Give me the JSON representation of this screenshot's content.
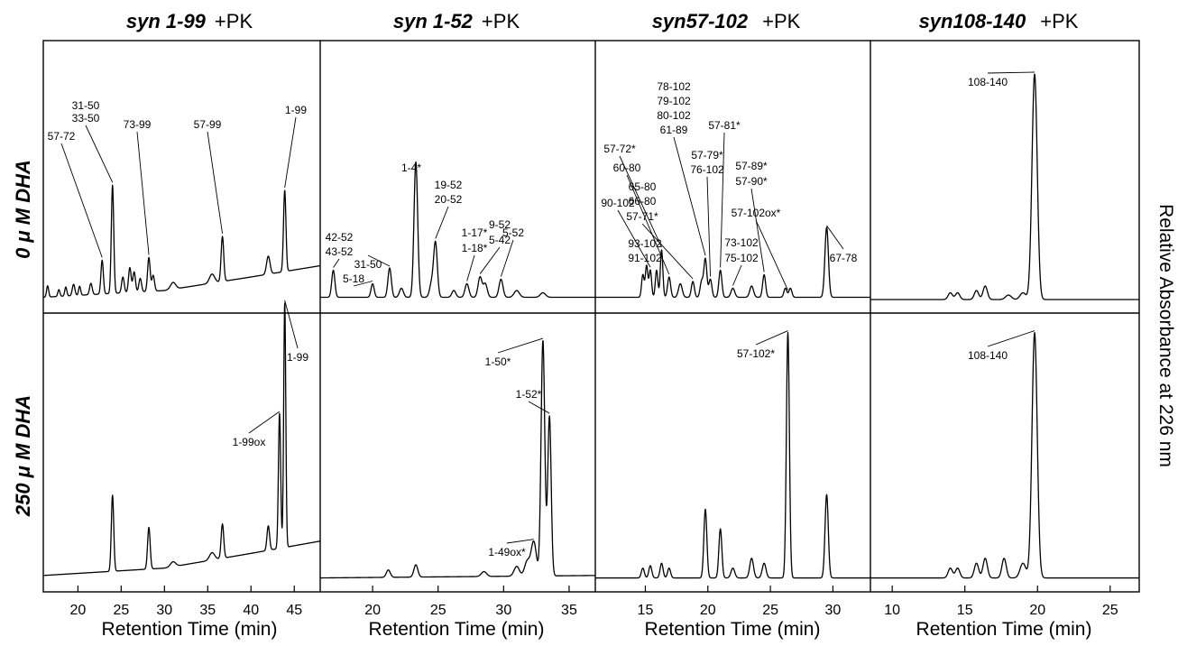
{
  "y_axis_label": "Relative Absorbance at 226 nm",
  "row_labels": [
    {
      "value": "0",
      "rest": " M DHA"
    },
    {
      "value": "250",
      "rest": " M DHA"
    }
  ],
  "mu": "μ",
  "chart_data": [
    {
      "type": "line",
      "title": "syn 1-99",
      "title_suffix": "+PK",
      "xlabel": "Retention Time (min)",
      "xlim": [
        16,
        48
      ],
      "xticks": [
        20,
        25,
        30,
        35,
        40,
        45
      ],
      "ylim": [
        0,
        100
      ],
      "grid": false,
      "series": [
        {
          "condition": "0 μM DHA",
          "baseline": [
            [
              16,
              3
            ],
            [
              30,
              6
            ],
            [
              40,
              12
            ],
            [
              48,
              17
            ]
          ],
          "peaks": [
            [
              16.5,
              5,
              0.12
            ],
            [
              17.8,
              3,
              0.12
            ],
            [
              18.6,
              4,
              0.12
            ],
            [
              19.5,
              5,
              0.15
            ],
            [
              20.2,
              4,
              0.12
            ],
            [
              21.5,
              5,
              0.15
            ],
            [
              22.8,
              15,
              0.14
            ],
            [
              24.0,
              48,
              0.14
            ],
            [
              25.2,
              7,
              0.15
            ],
            [
              26.0,
              11,
              0.15
            ],
            [
              26.5,
              9,
              0.15
            ],
            [
              27.2,
              6,
              0.15
            ],
            [
              28.2,
              15,
              0.15
            ],
            [
              28.7,
              7,
              0.15
            ],
            [
              31.0,
              3,
              0.3
            ],
            [
              35.5,
              4,
              0.3
            ],
            [
              36.7,
              20,
              0.15
            ],
            [
              42.0,
              8,
              0.2
            ],
            [
              43.9,
              36,
              0.14
            ]
          ]
        },
        {
          "condition": "250 μM DHA",
          "baseline": [
            [
              16,
              3
            ],
            [
              30,
              6
            ],
            [
              40,
              12
            ],
            [
              48,
              17
            ]
          ],
          "peaks": [
            [
              24.0,
              31,
              0.14
            ],
            [
              28.2,
              17,
              0.15
            ],
            [
              31.0,
              2,
              0.3
            ],
            [
              35.5,
              3,
              0.3
            ],
            [
              36.7,
              14,
              0.15
            ],
            [
              42.0,
              10,
              0.15
            ],
            [
              43.3,
              55,
              0.13
            ],
            [
              43.9,
              100,
              0.12
            ]
          ]
        }
      ],
      "annotations": [
        {
          "row": 0,
          "text": "31-50",
          "x": 24.0
        },
        {
          "row": 0,
          "text": "33-50",
          "x": 24.0
        },
        {
          "row": 0,
          "text": "57-72",
          "x": 22.8
        },
        {
          "row": 0,
          "text": "73-99",
          "x": 28.2
        },
        {
          "row": 0,
          "text": "57-99",
          "x": 36.7
        },
        {
          "row": 0,
          "text": "1-99",
          "x": 43.9
        },
        {
          "row": 1,
          "text": "1-99",
          "x": 43.9
        },
        {
          "row": 1,
          "text": "1-99ox",
          "x": 43.3
        }
      ]
    },
    {
      "type": "line",
      "title": "syn 1-52",
      "title_suffix": "+PK",
      "xlabel": "Retention Time (min)",
      "xlim": [
        16,
        37
      ],
      "xticks": [
        20,
        25,
        30,
        35
      ],
      "ylim": [
        0,
        100
      ],
      "grid": false,
      "series": [
        {
          "condition": "0 μM DHA",
          "baseline": [
            [
              16,
              3
            ],
            [
              37,
              3
            ]
          ],
          "peaks": [
            [
              17.0,
              12,
              0.12
            ],
            [
              20.0,
              6,
              0.12
            ],
            [
              21.3,
              13,
              0.13
            ],
            [
              22.2,
              4,
              0.15
            ],
            [
              23.3,
              60,
              0.14
            ],
            [
              24.5,
              6,
              0.15
            ],
            [
              24.8,
              24,
              0.14
            ],
            [
              26.2,
              3,
              0.15
            ],
            [
              27.2,
              6,
              0.15
            ],
            [
              28.2,
              9,
              0.15
            ],
            [
              28.6,
              6,
              0.15
            ],
            [
              29.8,
              8,
              0.15
            ],
            [
              31.0,
              3,
              0.2
            ],
            [
              33.0,
              2,
              0.2
            ]
          ]
        },
        {
          "condition": "250 μM DHA",
          "baseline": [
            [
              16,
              2
            ],
            [
              37,
              3
            ]
          ],
          "peaks": [
            [
              21.2,
              3,
              0.15
            ],
            [
              23.3,
              5,
              0.15
            ],
            [
              28.5,
              2,
              0.2
            ],
            [
              31.0,
              4,
              0.2
            ],
            [
              31.8,
              6,
              0.2
            ],
            [
              32.3,
              14,
              0.2
            ],
            [
              33.0,
              96,
              0.14
            ],
            [
              33.5,
              65,
              0.13
            ]
          ]
        }
      ],
      "annotations": [
        {
          "row": 0,
          "text": "42-52",
          "x": 17.0
        },
        {
          "row": 0,
          "text": "43-52",
          "x": 17.0
        },
        {
          "row": 0,
          "text": "5-18",
          "x": 20.0
        },
        {
          "row": 0,
          "text": "31-50",
          "x": 21.3
        },
        {
          "row": 0,
          "text": "1-4*",
          "x": 23.3
        },
        {
          "row": 0,
          "text": "19-52",
          "x": 24.8
        },
        {
          "row": 0,
          "text": "20-52",
          "x": 24.8
        },
        {
          "row": 0,
          "text": "1-17*",
          "x": 27.2
        },
        {
          "row": 0,
          "text": "1-18*",
          "x": 27.2
        },
        {
          "row": 0,
          "text": "9-52",
          "x": 28.2
        },
        {
          "row": 0,
          "text": "5-42",
          "x": 28.2
        },
        {
          "row": 0,
          "text": "5-52",
          "x": 29.8
        },
        {
          "row": 1,
          "text": "1-50*",
          "x": 33.0
        },
        {
          "row": 1,
          "text": "1-52*",
          "x": 33.5
        },
        {
          "row": 1,
          "text": "1-49ox*",
          "x": 32.3
        }
      ]
    },
    {
      "type": "line",
      "title": "syn57-102",
      "title_suffix": "+PK",
      "xlabel": "Retention Time (min)",
      "xlim": [
        11,
        33
      ],
      "xticks": [
        15,
        20,
        25,
        30
      ],
      "ylim": [
        0,
        100
      ],
      "grid": false,
      "series": [
        {
          "condition": "0 μM DHA",
          "baseline": [
            [
              11,
              3
            ],
            [
              33,
              3
            ]
          ],
          "peaks": [
            [
              14.8,
              10,
              0.1
            ],
            [
              15.1,
              14,
              0.1
            ],
            [
              15.4,
              12,
              0.1
            ],
            [
              15.9,
              12,
              0.1
            ],
            [
              16.3,
              21,
              0.1
            ],
            [
              16.9,
              9,
              0.12
            ],
            [
              17.8,
              6,
              0.15
            ],
            [
              18.8,
              7,
              0.12
            ],
            [
              19.5,
              7,
              0.12
            ],
            [
              19.8,
              17,
              0.12
            ],
            [
              20.2,
              8,
              0.12
            ],
            [
              21.0,
              12,
              0.12
            ],
            [
              22.0,
              4,
              0.15
            ],
            [
              23.5,
              5,
              0.15
            ],
            [
              24.5,
              10,
              0.12
            ],
            [
              26.2,
              4,
              0.12
            ],
            [
              26.6,
              4,
              0.12
            ],
            [
              29.5,
              31,
              0.14
            ]
          ]
        },
        {
          "condition": "250 μM DHA",
          "baseline": [
            [
              11,
              2
            ],
            [
              33,
              2
            ]
          ],
          "peaks": [
            [
              14.8,
              4,
              0.12
            ],
            [
              15.4,
              5,
              0.12
            ],
            [
              16.3,
              6,
              0.12
            ],
            [
              16.9,
              4,
              0.12
            ],
            [
              19.8,
              28,
              0.12
            ],
            [
              21.0,
              20,
              0.12
            ],
            [
              22.0,
              4,
              0.15
            ],
            [
              23.5,
              8,
              0.15
            ],
            [
              24.5,
              6,
              0.15
            ],
            [
              26.4,
              100,
              0.12
            ],
            [
              29.5,
              34,
              0.13
            ]
          ]
        }
      ],
      "annotations": [
        {
          "row": 0,
          "text": "78-102",
          "x": 19.8
        },
        {
          "row": 0,
          "text": "79-102",
          "x": 19.8
        },
        {
          "row": 0,
          "text": "80-102",
          "x": 19.8
        },
        {
          "row": 0,
          "text": "61-89",
          "x": 19.8
        },
        {
          "row": 0,
          "text": "57-81*",
          "x": 21.0
        },
        {
          "row": 0,
          "text": "57-72*",
          "x": 16.3
        },
        {
          "row": 0,
          "text": "60-80",
          "x": 16.9
        },
        {
          "row": 0,
          "text": "65-80",
          "x": 18.8
        },
        {
          "row": 0,
          "text": "66-80",
          "x": 18.8
        },
        {
          "row": 0,
          "text": "57-71*",
          "x": 18.8
        },
        {
          "row": 0,
          "text": "57-79*",
          "x": 20.2
        },
        {
          "row": 0,
          "text": "76-102",
          "x": 20.2
        },
        {
          "row": 0,
          "text": "90-102",
          "x": 15.4
        },
        {
          "row": 0,
          "text": "93-102",
          "x": 15.1
        },
        {
          "row": 0,
          "text": "91-102",
          "x": 15.1
        },
        {
          "row": 0,
          "text": "73-102",
          "x": 22.0
        },
        {
          "row": 0,
          "text": "75-102",
          "x": 22.0
        },
        {
          "row": 0,
          "text": "57-89*",
          "x": 24.5
        },
        {
          "row": 0,
          "text": "57-90*",
          "x": 24.5
        },
        {
          "row": 0,
          "text": "57-102ox*",
          "x": 26.4
        },
        {
          "row": 0,
          "text": "67-78",
          "x": 29.5
        },
        {
          "row": 1,
          "text": "57-102*",
          "x": 26.4
        }
      ]
    },
    {
      "type": "line",
      "title": "syn108-140",
      "title_suffix": "+PK",
      "xlabel": "Retention Time (min)",
      "xlim": [
        8.5,
        27
      ],
      "xticks": [
        10,
        15,
        20,
        25
      ],
      "ylim": [
        0,
        100
      ],
      "grid": false,
      "series": [
        {
          "condition": "0 μM DHA",
          "baseline": [
            [
              8.5,
              2
            ],
            [
              27,
              2
            ]
          ],
          "peaks": [
            [
              14.0,
              3,
              0.15
            ],
            [
              14.5,
              3,
              0.15
            ],
            [
              15.8,
              4,
              0.15
            ],
            [
              16.4,
              6,
              0.15
            ],
            [
              18.0,
              2,
              0.2
            ],
            [
              19.0,
              3,
              0.2
            ],
            [
              19.8,
              100,
              0.18
            ]
          ]
        },
        {
          "condition": "250 μM DHA",
          "baseline": [
            [
              8.5,
              2
            ],
            [
              27,
              2
            ]
          ],
          "peaks": [
            [
              14.0,
              4,
              0.15
            ],
            [
              14.5,
              4,
              0.15
            ],
            [
              15.8,
              6,
              0.15
            ],
            [
              16.4,
              8,
              0.15
            ],
            [
              17.7,
              8,
              0.15
            ],
            [
              19.0,
              6,
              0.2
            ],
            [
              19.8,
              100,
              0.18
            ]
          ]
        }
      ],
      "annotations": [
        {
          "row": 0,
          "text": "108-140",
          "x": 19.8
        },
        {
          "row": 1,
          "text": "108-140",
          "x": 19.8
        }
      ]
    }
  ]
}
